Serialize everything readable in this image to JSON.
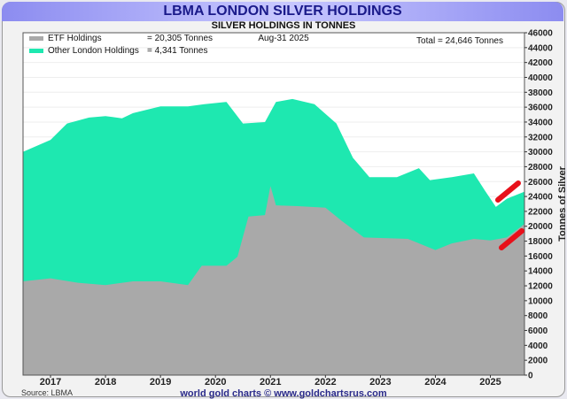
{
  "chart_data": {
    "type": "area",
    "title": "LBMA LONDON SILVER HOLDINGS",
    "subtitle": "SILVER HOLDINGS IN TONNES",
    "date": "Aug-31  2025",
    "ylabel": "Tonnes of Silver",
    "ylim": [
      0,
      46000
    ],
    "yticks": [
      0,
      2000,
      4000,
      6000,
      8000,
      10000,
      12000,
      14000,
      16000,
      18000,
      20000,
      22000,
      24000,
      26000,
      28000,
      30000,
      32000,
      34000,
      36000,
      38000,
      40000,
      42000,
      44000,
      46000
    ],
    "xlim": [
      2016.5,
      2025.62
    ],
    "xticks": [
      "2017",
      "2018",
      "2019",
      "2020",
      "2021",
      "2022",
      "2023",
      "2024",
      "2025"
    ],
    "legend": [
      {
        "name": "ETF Holdings",
        "value": "= 20,305 Tonnes",
        "color": "#a9a9a9"
      },
      {
        "name": "Other London Holdings",
        "value": "= 4,341 Tonnes",
        "color": "#1ee8b0"
      }
    ],
    "total": "Total = 24,646 Tonnes",
    "source": "Source: LBMA",
    "credit": "world gold charts © www.goldchartsrus.com",
    "series": [
      {
        "name": "ETF Holdings",
        "x": [
          2016.5,
          2017.0,
          2017.5,
          2018.0,
          2018.5,
          2019.0,
          2019.5,
          2019.75,
          2020.2,
          2020.4,
          2020.6,
          2020.9,
          2021.0,
          2021.1,
          2021.5,
          2022.0,
          2022.3,
          2022.7,
          2023.5,
          2024.0,
          2024.3,
          2024.7,
          2025.0,
          2025.3,
          2025.62
        ],
        "values": [
          12600,
          13000,
          12400,
          12100,
          12600,
          12600,
          12100,
          14700,
          14700,
          15900,
          21300,
          21500,
          25400,
          22800,
          22700,
          22500,
          20700,
          18500,
          18300,
          16800,
          17700,
          18300,
          18100,
          18500,
          20305
        ]
      },
      {
        "name": "Total",
        "x": [
          2016.5,
          2017.0,
          2017.3,
          2017.7,
          2018.0,
          2018.3,
          2018.5,
          2019.0,
          2019.5,
          2019.8,
          2020.2,
          2020.5,
          2020.9,
          2021.1,
          2021.4,
          2021.8,
          2022.2,
          2022.5,
          2022.8,
          2023.3,
          2023.7,
          2023.9,
          2024.3,
          2024.7,
          2024.9,
          2025.1,
          2025.3,
          2025.62
        ],
        "values": [
          30000,
          31600,
          33800,
          34600,
          34800,
          34500,
          35200,
          36100,
          36100,
          36400,
          36700,
          33800,
          34000,
          36700,
          37100,
          36400,
          33800,
          29200,
          26600,
          26600,
          27800,
          26200,
          26600,
          27100,
          24800,
          22600,
          23700,
          24646
        ]
      }
    ]
  }
}
